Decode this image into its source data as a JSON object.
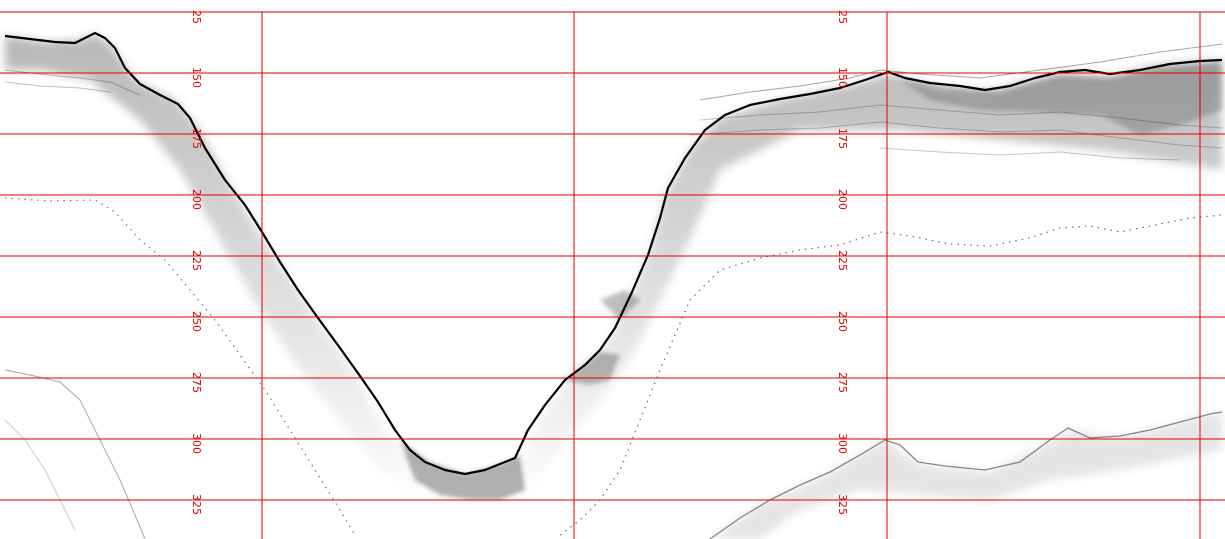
{
  "depth_labels": [
    "25",
    "150",
    "175",
    "200",
    "225",
    "250",
    "275",
    "300",
    "325"
  ],
  "colors": {
    "grid": "#e00000",
    "echo": "#000000",
    "background": "#ffffff"
  }
}
